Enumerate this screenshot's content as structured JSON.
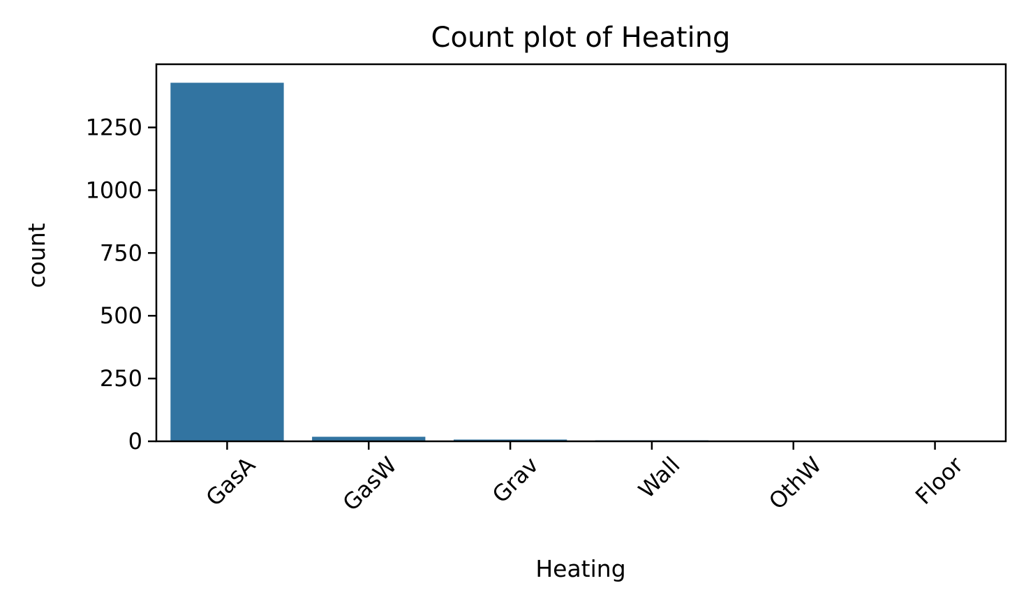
{
  "chart_data": {
    "type": "bar",
    "title": "Count plot of Heating",
    "xlabel": "Heating",
    "ylabel": "count",
    "categories": [
      "GasA",
      "GasW",
      "Grav",
      "Wall",
      "OthW",
      "Floor"
    ],
    "values": [
      1428,
      18,
      7,
      4,
      2,
      1
    ],
    "ylim": [
      0,
      1500
    ],
    "yticks": [
      0,
      250,
      500,
      750,
      1000,
      1250
    ],
    "bar_color": "#3274a1",
    "grid": false,
    "legend": "none"
  }
}
